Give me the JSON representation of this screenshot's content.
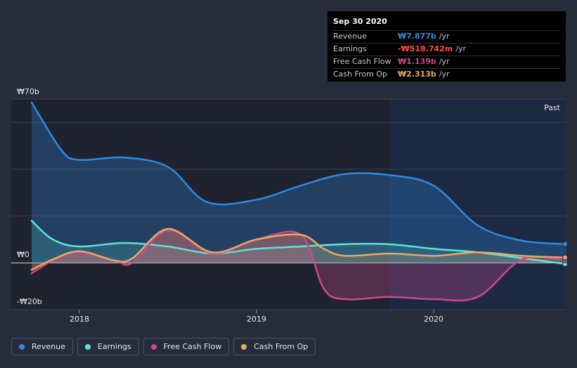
{
  "chart_data": {
    "type": "line",
    "title": "",
    "xlabel": "",
    "ylabel": "",
    "x_tick_labels": [
      "2018",
      "2019",
      "2020"
    ],
    "y_tick_labels": [
      "₩70b",
      "₩0",
      "-₩20b"
    ],
    "ylim": [
      -20,
      70
    ],
    "past_label": "Past",
    "legend_position": "bottom-left",
    "series": [
      {
        "name": "Revenue",
        "key": "revenue",
        "color": "#2d8be6",
        "x": [
          2017.73,
          2017.9,
          2018.0,
          2018.25,
          2018.5,
          2018.72,
          2019.0,
          2019.25,
          2019.5,
          2019.75,
          2020.0,
          2020.25,
          2020.5,
          2020.75
        ],
        "values": [
          68.5,
          48,
          44,
          45,
          41,
          26,
          27,
          33,
          38,
          37.5,
          33,
          16,
          9.5,
          8
        ]
      },
      {
        "name": "Earnings",
        "key": "earnings",
        "color": "#5ce6d8",
        "x": [
          2017.73,
          2017.85,
          2018.0,
          2018.25,
          2018.5,
          2018.75,
          2019.0,
          2019.25,
          2019.5,
          2019.75,
          2020.0,
          2020.25,
          2020.5,
          2020.75
        ],
        "values": [
          18,
          10,
          7,
          8.5,
          7,
          4,
          6,
          7,
          8,
          8,
          6,
          4.5,
          2,
          -0.5
        ]
      },
      {
        "name": "Free Cash Flow",
        "key": "fcf",
        "color": "#cc4a8a",
        "x": [
          2017.73,
          2017.85,
          2018.0,
          2018.2,
          2018.3,
          2018.5,
          2018.75,
          2019.0,
          2019.25,
          2019.38,
          2019.5,
          2019.75,
          2020.0,
          2020.25,
          2020.5,
          2020.75
        ],
        "values": [
          -4.5,
          1,
          4.5,
          1,
          0,
          14,
          4,
          10,
          12,
          -11,
          -15.5,
          -14.5,
          -15.5,
          -14.5,
          1.5,
          1.1
        ]
      },
      {
        "name": "Cash From Op",
        "key": "cfo",
        "color": "#eba95e",
        "x": [
          2017.73,
          2017.85,
          2018.0,
          2018.2,
          2018.3,
          2018.5,
          2018.75,
          2019.0,
          2019.25,
          2019.38,
          2019.5,
          2019.75,
          2020.0,
          2020.25,
          2020.5,
          2020.75
        ],
        "values": [
          -3,
          1.5,
          5,
          1,
          2,
          14.5,
          4.5,
          10,
          12,
          6,
          3,
          4,
          3,
          4.5,
          3,
          2.3
        ]
      }
    ]
  },
  "tooltip": {
    "date": "Sep 30 2020",
    "rows": [
      {
        "label": "Revenue",
        "value": "₩7.877b",
        "unit": "/yr",
        "color": "#2d8be6"
      },
      {
        "label": "Earnings",
        "value": "-₩518.742m",
        "unit": "/yr",
        "color": "#ff4d4d"
      },
      {
        "label": "Free Cash Flow",
        "value": "₩1.139b",
        "unit": "/yr",
        "color": "#cc4a8a"
      },
      {
        "label": "Cash From Op",
        "value": "₩2.313b",
        "unit": "/yr",
        "color": "#eba95e"
      }
    ]
  },
  "legend": [
    {
      "label": "Revenue",
      "color": "#2d8be6"
    },
    {
      "label": "Earnings",
      "color": "#5ce6d8"
    },
    {
      "label": "Free Cash Flow",
      "color": "#cc4a8a"
    },
    {
      "label": "Cash From Op",
      "color": "#eba95e"
    }
  ]
}
